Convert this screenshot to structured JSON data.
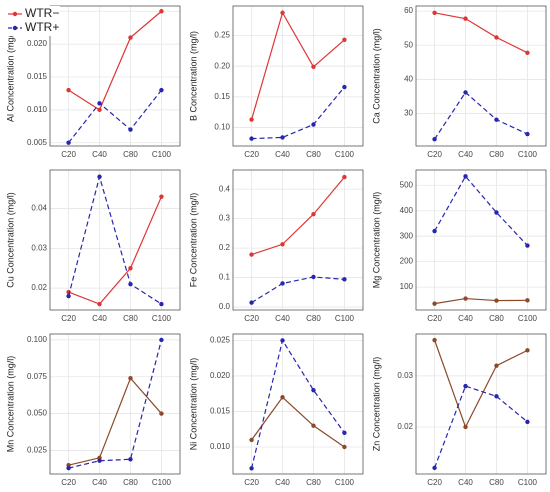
{
  "chart_data": [
    {
      "type": "line",
      "ylabel": "Al Concentration (mg/l)",
      "categories": [
        "C20",
        "C40",
        "C80",
        "C100"
      ],
      "legend": "upper left",
      "grid": true,
      "ylim": [
        0.0045,
        0.0258
      ],
      "yticks": [
        0.005,
        {
          "value": 0.01,
          "label": "0.010"
        },
        0.015,
        {
          "value": 0.02,
          "label": "0.020"
        },
        0.025
      ],
      "series": [
        {
          "name": "WTR−",
          "color": "#e03535",
          "linestyle": "solid",
          "values": [
            0.013,
            0.01,
            0.021,
            0.025
          ]
        },
        {
          "name": "WTR+",
          "color": "#2626b0",
          "linestyle": "dashed",
          "values": [
            0.005,
            0.011,
            0.007,
            0.013
          ]
        }
      ]
    },
    {
      "type": "line",
      "ylabel": "B Concentration (mg/l)",
      "categories": [
        "C20",
        "C40",
        "C80",
        "C100"
      ],
      "grid": true,
      "ylim": [
        0.07,
        0.298
      ],
      "yticks": [
        {
          "value": 0.1,
          "label": "0.10"
        },
        0.15,
        {
          "value": 0.2,
          "label": "0.20"
        },
        0.25
      ],
      "series": [
        {
          "color": "#e03535",
          "linestyle": "solid",
          "values": [
            0.113,
            0.287,
            0.199,
            0.243
          ]
        },
        {
          "color": "#2626b0",
          "linestyle": "dashed",
          "values": [
            0.082,
            0.084,
            0.105,
            0.166
          ]
        }
      ]
    },
    {
      "type": "line",
      "ylabel": "Ca Concentration (mg/l)",
      "categories": [
        "C20",
        "C40",
        "C80",
        "C100"
      ],
      "grid": true,
      "ylim": [
        20.5,
        61.5
      ],
      "yticks": [
        30,
        40,
        50,
        60
      ],
      "series": [
        {
          "color": "#e03535",
          "linestyle": "solid",
          "values": [
            59.5,
            57.8,
            52.3,
            47.8
          ]
        },
        {
          "color": "#2626b0",
          "linestyle": "dashed",
          "values": [
            22.5,
            36.2,
            28.2,
            24.0
          ]
        }
      ]
    },
    {
      "type": "line",
      "ylabel": "Cu Concentration (mg/l)",
      "categories": [
        "C20",
        "C40",
        "C80",
        "C100"
      ],
      "grid": true,
      "ylim": [
        0.0145,
        0.0497
      ],
      "yticks": [
        0.02,
        0.03,
        0.04
      ],
      "series": [
        {
          "color": "#e03535",
          "linestyle": "solid",
          "values": [
            0.019,
            0.016,
            0.025,
            0.043
          ]
        },
        {
          "color": "#2626b0",
          "linestyle": "dashed",
          "values": [
            0.018,
            0.048,
            0.021,
            0.016
          ]
        }
      ]
    },
    {
      "type": "line",
      "ylabel": "Fe Concentration (mg/l)",
      "categories": [
        "C20",
        "C40",
        "C80",
        "C100"
      ],
      "grid": true,
      "ylim": [
        -0.01,
        0.465
      ],
      "yticks": [
        {
          "value": 0,
          "label": "0.0"
        },
        0.1,
        0.2,
        0.3,
        0.4
      ],
      "series": [
        {
          "color": "#e03535",
          "linestyle": "solid",
          "values": [
            0.178,
            0.213,
            0.315,
            0.441
          ]
        },
        {
          "color": "#2626b0",
          "linestyle": "dashed",
          "values": [
            0.015,
            0.08,
            0.102,
            0.094
          ]
        }
      ]
    },
    {
      "type": "line",
      "ylabel": "Mg Concentration (mg/l)",
      "categories": [
        "C20",
        "C40",
        "C80",
        "C100"
      ],
      "grid": true,
      "ylim": [
        10,
        560
      ],
      "yticks": [
        100,
        200,
        300,
        400,
        500
      ],
      "series": [
        {
          "color": "#8b4a2a",
          "linestyle": "solid",
          "values": [
            35,
            55,
            47,
            48
          ]
        },
        {
          "color": "#2626b0",
          "linestyle": "dashed",
          "values": [
            320,
            535,
            393,
            263
          ]
        }
      ]
    },
    {
      "type": "line",
      "ylabel": "Mn Concentration (mg/l)",
      "categories": [
        "C20",
        "C40",
        "C80",
        "C100"
      ],
      "grid": true,
      "ylim": [
        0.009,
        0.104
      ],
      "yticks": [
        0.025,
        {
          "value": 0.05,
          "label": "0.050"
        },
        0.075,
        {
          "value": 0.1,
          "label": "0.100"
        }
      ],
      "series": [
        {
          "color": "#8b4a2a",
          "linestyle": "solid",
          "values": [
            0.015,
            0.02,
            0.074,
            0.05
          ]
        },
        {
          "color": "#2626b0",
          "linestyle": "dashed",
          "values": [
            0.013,
            0.018,
            0.019,
            0.1
          ]
        }
      ]
    },
    {
      "type": "line",
      "ylabel": "Ni Concentration (mg/l)",
      "categories": [
        "C20",
        "C40",
        "C80",
        "C100"
      ],
      "grid": true,
      "ylim": [
        0.0062,
        0.0259
      ],
      "yticks": [
        {
          "value": 0.01,
          "label": "0.010"
        },
        0.015,
        {
          "value": 0.02,
          "label": "0.020"
        },
        0.025
      ],
      "series": [
        {
          "color": "#8b4a2a",
          "linestyle": "solid",
          "values": [
            0.011,
            0.017,
            0.013,
            0.01
          ]
        },
        {
          "color": "#2626b0",
          "linestyle": "dashed",
          "values": [
            0.007,
            0.025,
            0.018,
            0.012
          ]
        }
      ]
    },
    {
      "type": "line",
      "ylabel": "Zn Concentration (mg/l)",
      "categories": [
        "C20",
        "C40",
        "C80",
        "C100"
      ],
      "grid": true,
      "ylim": [
        0.0108,
        0.0382
      ],
      "yticks": [
        0.02,
        0.03
      ],
      "series": [
        {
          "color": "#8b4a2a",
          "linestyle": "solid",
          "values": [
            0.037,
            0.02,
            0.032,
            0.035
          ]
        },
        {
          "color": "#2626b0",
          "linestyle": "dashed",
          "values": [
            0.012,
            0.028,
            0.026,
            0.021
          ]
        }
      ]
    }
  ]
}
